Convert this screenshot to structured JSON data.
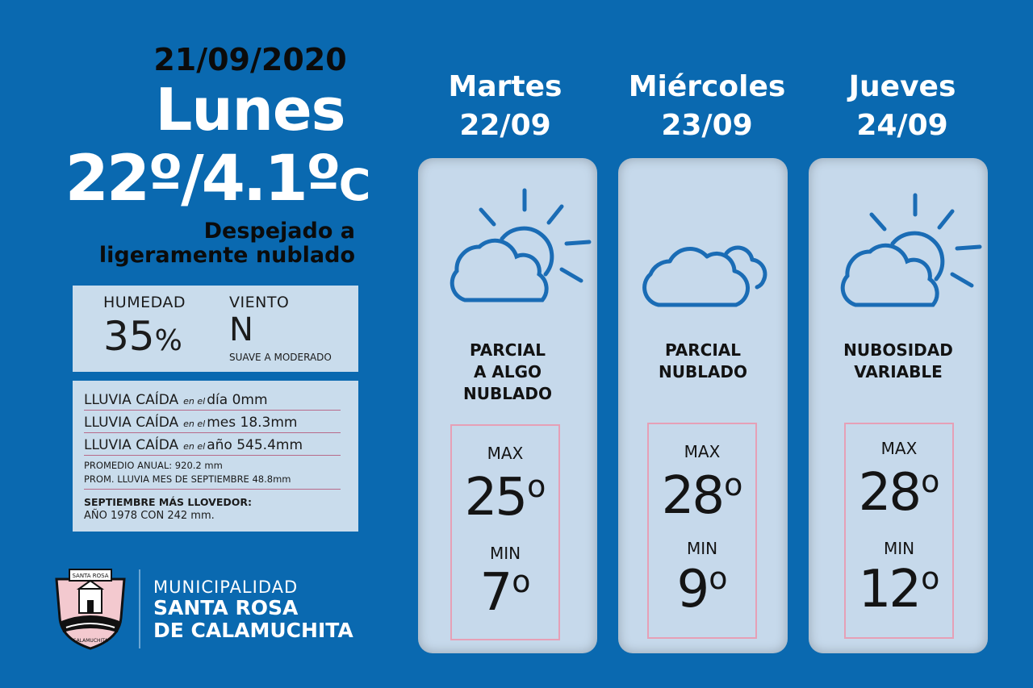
{
  "today": {
    "date": "21/09/2020",
    "day": "Lunes",
    "temp": "22º/4.1º",
    "unit": "C",
    "condition_line1": "Despejado a",
    "condition_line2": "ligeramente nublado"
  },
  "stats": {
    "humidity_label": "HUMEDAD",
    "humidity_value": "35",
    "humidity_unit": "%",
    "wind_label": "VIENTO",
    "wind_value": "N",
    "wind_desc": "SUAVE A MODERADO"
  },
  "rain": {
    "rows": [
      {
        "label": "LLUVIA CAÍDA",
        "connector": "en el",
        "period": "día",
        "value": "0mm"
      },
      {
        "label": "LLUVIA CAÍDA",
        "connector": "en el",
        "period": "mes",
        "value": "18.3mm"
      },
      {
        "label": "LLUVIA CAÍDA",
        "connector": "en el",
        "period": "año",
        "value": "545.4mm"
      }
    ],
    "annual_avg": "PROMEDIO ANUAL: 920.2 mm",
    "sept_avg": "PROM. LLUVIA MES DE SEPTIEMBRE 48.8mm",
    "record_title": "SEPTIEMBRE MÁS LLOVEDOR:",
    "record_value": "AÑO 1978 CON 242 mm."
  },
  "forecast": [
    {
      "day": "Martes",
      "date": "22/09",
      "cond1": "PARCIAL",
      "cond2": "A ALGO",
      "cond3": "NUBLADO",
      "max_label": "MAX",
      "max": "25",
      "min_label": "MIN",
      "min": "7",
      "icon": "partly-cloudy-sun-icon"
    },
    {
      "day": "Miércoles",
      "date": "23/09",
      "cond1": "PARCIAL",
      "cond2": "NUBLADO",
      "cond3": "",
      "max_label": "MAX",
      "max": "28",
      "min_label": "MIN",
      "min": "9",
      "icon": "cloudy-icon"
    },
    {
      "day": "Jueves",
      "date": "24/09",
      "cond1": "NUBOSIDAD",
      "cond2": "VARIABLE",
      "cond3": "",
      "max_label": "MAX",
      "max": "28",
      "min_label": "MIN",
      "min": "12",
      "icon": "partly-cloudy-sun-icon"
    }
  ],
  "degree_symbol": "o",
  "logo": {
    "line1": "MUNICIPALIDAD",
    "line2": "SANTA ROSA",
    "line3": "DE CALAMUCHITA",
    "seal_top": "SANTA ROSA",
    "seal_bottom": "CALAMUCHITA"
  },
  "colors": {
    "background": "#0a69b0",
    "card": "#c6d9eb",
    "box": "#c9dcec",
    "icon": "#1a6cb5",
    "temp_border": "#e6a0b6"
  }
}
